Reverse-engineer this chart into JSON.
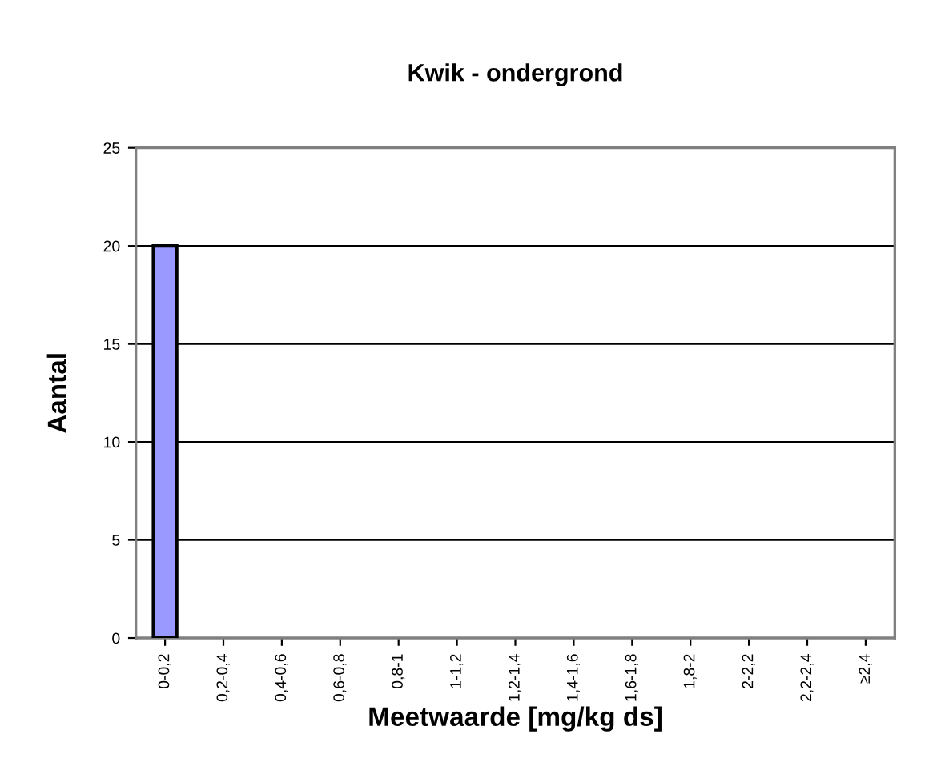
{
  "chart_data": {
    "type": "bar",
    "title": "Kwik - ondergrond",
    "xlabel": "Meetwaarde [mg/kg ds]",
    "ylabel": "Aantal",
    "categories": [
      "0-0,2",
      "0,2-0,4",
      "0,4-0,6",
      "0,6-0,8",
      "0,8-1",
      "1-1,2",
      "1,2-1,4",
      "1,4-1,6",
      "1,6-1,8",
      "1,8-2",
      "2-2,2",
      "2,2-2,4",
      "≥2,4"
    ],
    "values": [
      20,
      0,
      0,
      0,
      0,
      0,
      0,
      0,
      0,
      0,
      0,
      0,
      0
    ],
    "color": "#9999ff",
    "ylim": [
      0,
      25
    ],
    "yticks": [
      0,
      5,
      10,
      15,
      20,
      25
    ],
    "grid": "y",
    "legend": false
  }
}
